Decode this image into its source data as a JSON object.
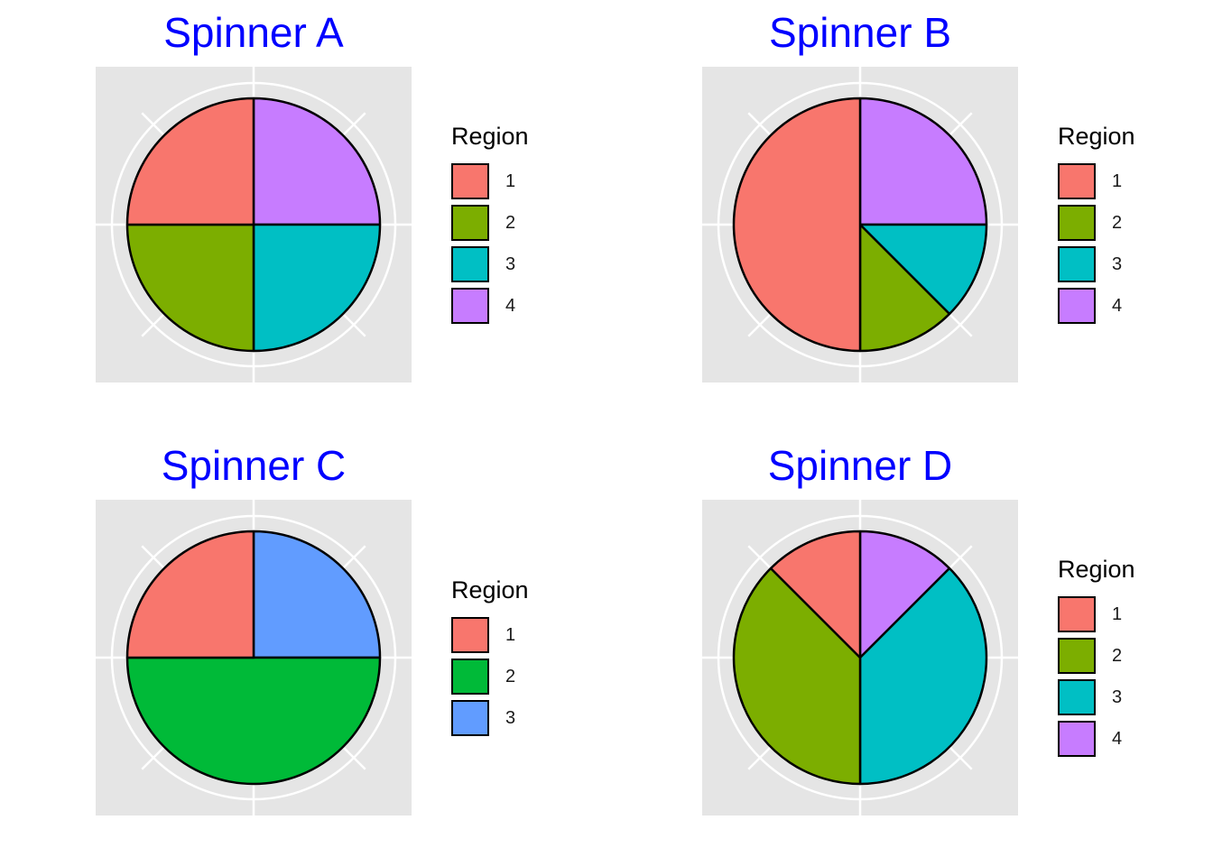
{
  "colors": {
    "title": "#0000ff",
    "panel_bg": "#e5e5e5",
    "grid": "#ffffff",
    "outline": "#000000"
  },
  "chart_data": [
    {
      "type": "pie",
      "title": "Spinner A",
      "legend_title": "Region",
      "legend_position": "right",
      "categories": [
        "1",
        "2",
        "3",
        "4"
      ],
      "values": [
        0.25,
        0.25,
        0.25,
        0.25
      ],
      "colors": [
        "#F8766D",
        "#7CAE00",
        "#00BFC4",
        "#C77CFF"
      ],
      "slice_order_clockwise_from_top": [
        "4",
        "3",
        "2",
        "1"
      ]
    },
    {
      "type": "pie",
      "title": "Spinner B",
      "legend_title": "Region",
      "legend_position": "right",
      "categories": [
        "1",
        "2",
        "3",
        "4"
      ],
      "values": [
        0.5,
        0.125,
        0.125,
        0.25
      ],
      "colors": [
        "#F8766D",
        "#7CAE00",
        "#00BFC4",
        "#C77CFF"
      ],
      "slice_order_clockwise_from_top": [
        "4",
        "3",
        "2",
        "1"
      ]
    },
    {
      "type": "pie",
      "title": "Spinner C",
      "legend_title": "Region",
      "legend_position": "right",
      "categories": [
        "1",
        "2",
        "3"
      ],
      "values": [
        0.25,
        0.5,
        0.25
      ],
      "colors": [
        "#F8766D",
        "#00BA38",
        "#619CFF"
      ],
      "slice_order_clockwise_from_top": [
        "3",
        "2",
        "1"
      ]
    },
    {
      "type": "pie",
      "title": "Spinner D",
      "legend_title": "Region",
      "legend_position": "right",
      "categories": [
        "1",
        "2",
        "3",
        "4"
      ],
      "values": [
        0.125,
        0.375,
        0.375,
        0.125
      ],
      "colors": [
        "#F8766D",
        "#7CAE00",
        "#00BFC4",
        "#C77CFF"
      ],
      "slice_order_clockwise_from_top": [
        "4",
        "3",
        "2",
        "1"
      ]
    }
  ]
}
